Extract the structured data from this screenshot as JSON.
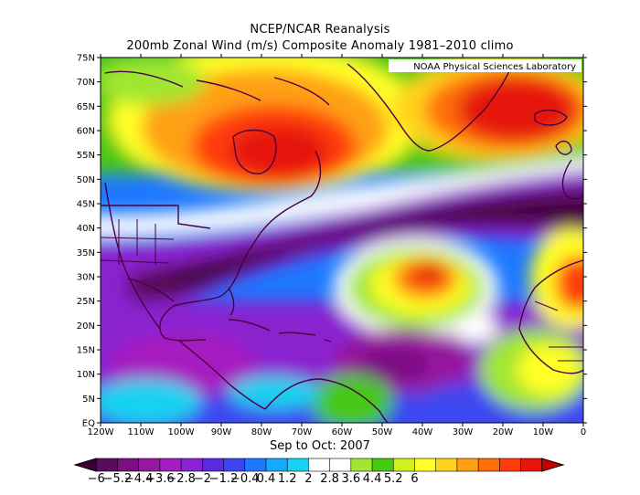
{
  "header": {
    "title_line1": "NCEP/NCAR Reanalysis",
    "title_line2": "200mb Zonal Wind (m/s) Composite Anomaly 1981–2010 climo"
  },
  "credit": "NOAA Physical Sciences Laboratory",
  "period_label": "Sep to Oct: 2007",
  "axes": {
    "lat_labels": [
      "75N",
      "70N",
      "65N",
      "60N",
      "55N",
      "50N",
      "45N",
      "40N",
      "35N",
      "30N",
      "25N",
      "20N",
      "15N",
      "10N",
      "5N",
      "EQ"
    ],
    "lon_labels": [
      "120W",
      "110W",
      "100W",
      "90W",
      "80W",
      "70W",
      "60W",
      "50W",
      "40W",
      "30W",
      "20W",
      "10W",
      "0"
    ]
  },
  "colorbar": {
    "tick_labels": [
      "−6",
      "−5.2",
      "−4.4",
      "−3.6",
      "−2.8",
      "−2",
      "−1.2",
      "−0.4",
      "0.4",
      "1.2",
      "2",
      "2.8",
      "3.6",
      "4.4",
      "5.2",
      "6"
    ],
    "colors": [
      "#3d0035",
      "#5a0a5a",
      "#7a0f82",
      "#96189e",
      "#a61ec0",
      "#8a22d0",
      "#5a2ae0",
      "#3c46f0",
      "#1e78ff",
      "#14aaff",
      "#14d2f0",
      "#ffffff",
      "#ffffff",
      "#a0e632",
      "#46c814",
      "#d2f01e",
      "#ffff28",
      "#ffd21e",
      "#ffa014",
      "#ff6e0a",
      "#ff3c0a",
      "#e6140a",
      "#c80000"
    ]
  },
  "map_features": [
    "North America",
    "Greenland",
    "Iceland",
    "Caribbean",
    "South America",
    "West Africa",
    "Europe"
  ]
}
